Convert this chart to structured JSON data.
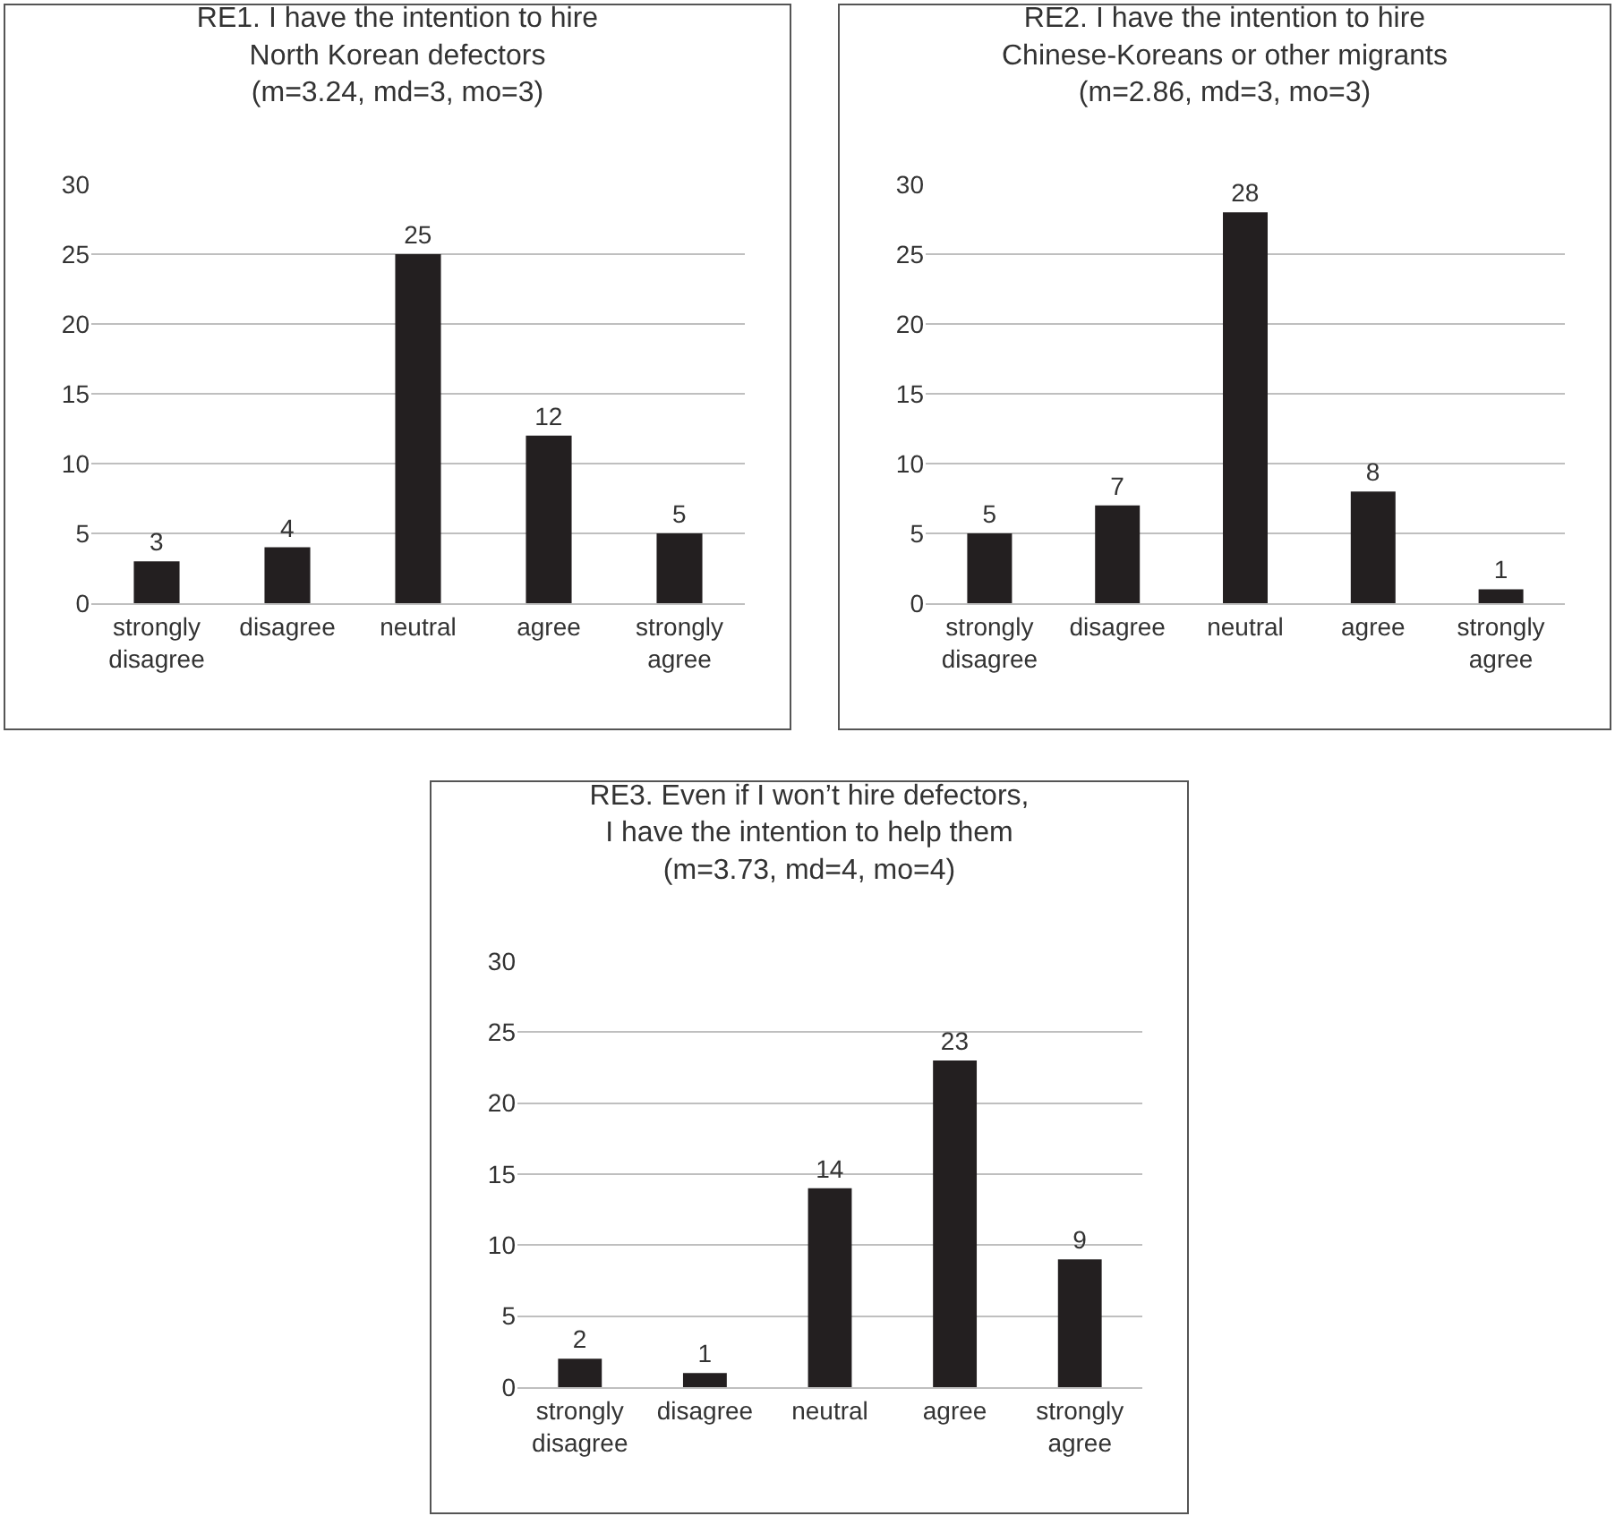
{
  "chart_data": [
    {
      "type": "bar",
      "title": "RE1. I have the intention to hire North Korean defectors",
      "subtitle": "(m=3.24, md=3, mo=3)",
      "categories": [
        "strongly disagree",
        "disagree",
        "neutral",
        "agree",
        "strongly agree"
      ],
      "values": [
        3,
        4,
        25,
        12,
        5
      ],
      "color": "#231f20",
      "ylim": [
        0,
        30
      ],
      "yticks": [
        0,
        5,
        10,
        15,
        20,
        25,
        30
      ],
      "grid": "y",
      "data_labels": true,
      "legend": false
    },
    {
      "type": "bar",
      "title": "RE2. I have the intention to hire Chinese-Koreans or other migrants",
      "subtitle": "(m=2.86, md=3, mo=3)",
      "categories": [
        "strongly disagree",
        "disagree",
        "neutral",
        "agree",
        "strongly agree"
      ],
      "values": [
        5,
        7,
        28,
        8,
        1
      ],
      "color": "#231f20",
      "ylim": [
        0,
        30
      ],
      "yticks": [
        0,
        5,
        10,
        15,
        20,
        25,
        30
      ],
      "grid": "y",
      "data_labels": true,
      "legend": false
    },
    {
      "type": "bar",
      "title": "RE3. Even if I won’t hire defectors, I have the intention to help them",
      "subtitle": "(m=3.73, md=4, mo=4)",
      "categories": [
        "strongly disagree",
        "disagree",
        "neutral",
        "agree",
        "strongly agree"
      ],
      "values": [
        2,
        1,
        14,
        23,
        9
      ],
      "color": "#231f20",
      "ylim": [
        0,
        30
      ],
      "yticks": [
        0,
        5,
        10,
        15,
        20,
        25,
        30
      ],
      "grid": "y",
      "data_labels": true,
      "legend": false
    }
  ]
}
